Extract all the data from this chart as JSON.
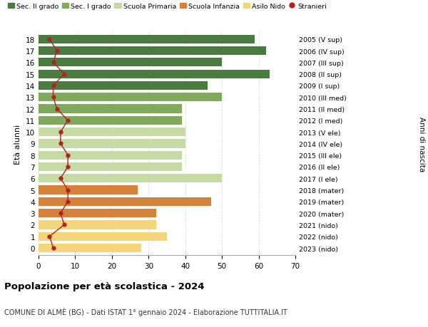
{
  "ages": [
    18,
    17,
    16,
    15,
    14,
    13,
    12,
    11,
    10,
    9,
    8,
    7,
    6,
    5,
    4,
    3,
    2,
    1,
    0
  ],
  "bar_values": [
    59,
    62,
    50,
    63,
    46,
    50,
    39,
    39,
    40,
    40,
    39,
    39,
    50,
    27,
    47,
    32,
    32,
    35,
    28
  ],
  "bar_colors": [
    "#4a7c3f",
    "#4a7c3f",
    "#4a7c3f",
    "#4a7c3f",
    "#4a7c3f",
    "#7faa5c",
    "#7faa5c",
    "#7faa5c",
    "#c5dba4",
    "#c5dba4",
    "#c5dba4",
    "#c5dba4",
    "#c5dba4",
    "#d4813a",
    "#d4813a",
    "#d4813a",
    "#f5d57a",
    "#f5d57a",
    "#f5d57a"
  ],
  "stranieri_values": [
    3,
    5,
    4,
    7,
    4,
    4,
    5,
    8,
    6,
    6,
    8,
    8,
    6,
    8,
    8,
    6,
    7,
    3,
    4
  ],
  "right_labels": [
    "2005 (V sup)",
    "2006 (IV sup)",
    "2007 (III sup)",
    "2008 (II sup)",
    "2009 (I sup)",
    "2010 (III med)",
    "2011 (II med)",
    "2012 (I med)",
    "2013 (V ele)",
    "2014 (IV ele)",
    "2015 (III ele)",
    "2016 (II ele)",
    "2017 (I ele)",
    "2018 (mater)",
    "2019 (mater)",
    "2020 (mater)",
    "2021 (nido)",
    "2022 (nido)",
    "2023 (nido)"
  ],
  "ylabel": "Età alunni",
  "right_ylabel": "Anni di nascita",
  "xlim": [
    0,
    70
  ],
  "xticks": [
    0,
    10,
    20,
    30,
    40,
    50,
    60,
    70
  ],
  "title": "Popolazione per età scolastica - 2024",
  "subtitle": "COMUNE DI ALMÈ (BG) - Dati ISTAT 1° gennaio 2024 - Elaborazione TUTTITALIA.IT",
  "legend_items": [
    {
      "label": "Sec. II grado",
      "color": "#4a7c3f"
    },
    {
      "label": "Sec. I grado",
      "color": "#7faa5c"
    },
    {
      "label": "Scuola Primaria",
      "color": "#c5dba4"
    },
    {
      "label": "Scuola Infanzia",
      "color": "#d4813a"
    },
    {
      "label": "Asilo Nido",
      "color": "#f5d57a"
    },
    {
      "label": "Stranieri",
      "color": "#b22222"
    }
  ],
  "bar_height": 0.75,
  "background_color": "#ffffff",
  "grid_color": "#cccccc"
}
